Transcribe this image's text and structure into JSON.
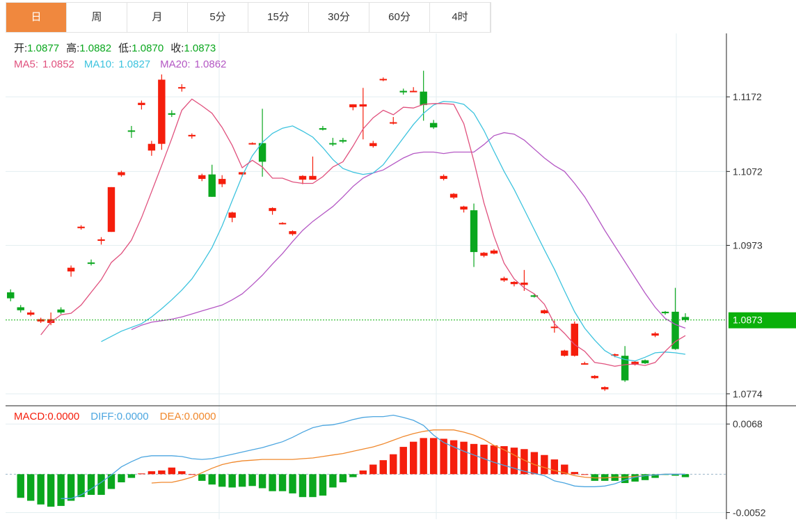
{
  "tabs": [
    {
      "label": "日",
      "active": true
    },
    {
      "label": "周",
      "active": false
    },
    {
      "label": "月",
      "active": false
    },
    {
      "label": "5分",
      "active": false
    },
    {
      "label": "15分",
      "active": false
    },
    {
      "label": "30分",
      "active": false
    },
    {
      "label": "60分",
      "active": false
    },
    {
      "label": "4时",
      "active": false
    }
  ],
  "ohlc_info": {
    "open_label": "开:",
    "open": "1.0877",
    "high_label": "高:",
    "high": "1.0882",
    "low_label": "低:",
    "low": "1.0870",
    "close_label": "收:",
    "close": "1.0873"
  },
  "ma_info": {
    "ma5_label": "MA5:",
    "ma5": "1.0852",
    "ma10_label": "MA10:",
    "ma10": "1.0827",
    "ma20_label": "MA20:",
    "ma20": "1.0862"
  },
  "macd_info": {
    "macd_label": "MACD:",
    "macd": "0.0000",
    "diff_label": "DIFF:",
    "diff": "0.0000",
    "dea_label": "DEA:",
    "dea": "0.0000"
  },
  "colors": {
    "up": "#f51e0c",
    "down": "#0aa71e",
    "ma5": "#e0507d",
    "ma10": "#3cc3de",
    "ma20": "#b457c4",
    "diff": "#4ca6e0",
    "dea": "#f0882c",
    "price_tag": "#0ab00a",
    "tab_active": "#f0883e",
    "grid": "#e3eef0"
  },
  "chart_data": {
    "type": "candlestick",
    "price_axis": {
      "ticks": [
        1.1172,
        1.1072,
        1.0973,
        1.0774
      ],
      "labels": [
        "1.1172",
        "1.1072",
        "1.0973",
        "1.0774"
      ],
      "range": [
        1.0758,
        1.1257
      ]
    },
    "current_price": {
      "value": 1.0873,
      "label": "1.0873"
    },
    "macd_axis": {
      "ticks": [
        0.0068,
        -0.0052
      ],
      "labels": [
        "0.0068",
        "-0.0052"
      ],
      "range": [
        -0.0061,
        0.0088
      ]
    },
    "candles": [
      [
        1.091,
        1.0902,
        1.0914,
        1.0898
      ],
      [
        1.089,
        1.0886,
        1.0893,
        1.0883
      ],
      [
        1.088,
        1.0883,
        1.0886,
        1.0878
      ],
      [
        1.0871,
        1.0874,
        1.0876,
        1.0869
      ],
      [
        1.0869,
        1.0874,
        1.0883,
        1.0866
      ],
      [
        1.0887,
        1.0883,
        1.089,
        1.0881
      ],
      [
        1.0938,
        1.0943,
        1.0946,
        1.0931
      ],
      [
        1.0996,
        1.0998,
        1.1,
        1.0994
      ],
      [
        1.095,
        1.0949,
        1.0954,
        1.0946
      ],
      [
        1.0979,
        1.0981,
        1.0984,
        1.0974
      ],
      [
        1.0991,
        1.1051,
        1.1051,
        1.0991
      ],
      [
        1.1067,
        1.1071,
        1.1073,
        1.1065
      ],
      [
        1.1127,
        1.1126,
        1.1133,
        1.1117
      ],
      [
        1.1161,
        1.1164,
        1.1167,
        1.1155
      ],
      [
        1.11,
        1.1109,
        1.1113,
        1.1093
      ],
      [
        1.1109,
        1.1195,
        1.1202,
        1.1101
      ],
      [
        1.115,
        1.1148,
        1.1154,
        1.1145
      ],
      [
        1.1184,
        1.1185,
        1.1189,
        1.1179
      ],
      [
        1.1119,
        1.1121,
        1.1123,
        1.1116
      ],
      [
        1.1062,
        1.1067,
        1.1069,
        1.1059
      ],
      [
        1.1068,
        1.1038,
        1.1081,
        1.1038
      ],
      [
        1.1055,
        1.1062,
        1.1067,
        1.1051
      ],
      [
        1.101,
        1.1017,
        1.1018,
        1.1004
      ],
      [
        1.1068,
        1.1071,
        1.1071,
        1.1065
      ],
      [
        1.111,
        1.111,
        1.1111,
        1.1108
      ],
      [
        1.111,
        1.1085,
        1.1156,
        1.1065
      ],
      [
        1.1019,
        1.1023,
        1.1024,
        1.1014
      ],
      [
        1.1003,
        1.1003,
        1.1004,
        1.1001
      ],
      [
        1.0988,
        1.0992,
        1.0993,
        1.0986
      ],
      [
        1.1061,
        1.1066,
        1.1067,
        1.1055
      ],
      [
        1.1061,
        1.1066,
        1.1092,
        1.1061
      ],
      [
        1.113,
        1.1128,
        1.1133,
        1.1127
      ],
      [
        1.111,
        1.1109,
        1.1117,
        1.1106
      ],
      [
        1.1114,
        1.1112,
        1.1117,
        1.111
      ],
      [
        1.1158,
        1.1162,
        1.1162,
        1.1154
      ],
      [
        1.1159,
        1.1162,
        1.1184,
        1.1115
      ],
      [
        1.1106,
        1.111,
        1.1113,
        1.1104
      ],
      [
        1.1195,
        1.1196,
        1.1198,
        1.1193
      ],
      [
        1.1137,
        1.1138,
        1.1145,
        1.1135
      ],
      [
        1.118,
        1.1178,
        1.1183,
        1.1175
      ],
      [
        1.118,
        1.118,
        1.1185,
        1.1179
      ],
      [
        1.1179,
        1.1161,
        1.1207,
        1.114
      ],
      [
        1.1137,
        1.1131,
        1.1141,
        1.1129
      ],
      [
        1.1062,
        1.1066,
        1.1068,
        1.106
      ],
      [
        1.1037,
        1.1042,
        1.1043,
        1.1035
      ],
      [
        1.1021,
        1.1025,
        1.1026,
        1.1017
      ],
      [
        1.102,
        1.0964,
        1.1029,
        1.0944
      ],
      [
        1.0959,
        1.0963,
        1.0964,
        1.0957
      ],
      [
        1.0962,
        1.0966,
        1.0968,
        1.0961
      ],
      [
        1.0926,
        1.0929,
        1.0931,
        1.0924
      ],
      [
        1.0921,
        1.0924,
        1.0925,
        1.0918
      ],
      [
        1.092,
        1.0923,
        1.094,
        1.0912
      ],
      [
        1.0906,
        1.0904,
        1.0908,
        1.0903
      ],
      [
        1.0882,
        1.0886,
        1.0887,
        1.0881
      ],
      [
        1.0863,
        1.0864,
        1.0872,
        1.0856
      ],
      [
        1.0825,
        1.0832,
        1.0833,
        1.0824
      ],
      [
        1.0825,
        1.0868,
        1.0871,
        1.0824
      ],
      [
        1.0814,
        1.0815,
        1.0817,
        1.0813
      ],
      [
        1.0795,
        1.0798,
        1.0799,
        1.0794
      ],
      [
        1.078,
        1.0783,
        1.0784,
        1.0778
      ],
      [
        1.0825,
        1.0827,
        1.0828,
        1.0823
      ],
      [
        1.0825,
        1.0792,
        1.0838,
        1.079
      ],
      [
        1.0813,
        1.0817,
        1.0818,
        1.0812
      ],
      [
        1.0819,
        1.0815,
        1.082,
        1.0814
      ],
      [
        1.0852,
        1.0855,
        1.0857,
        1.085
      ],
      [
        1.0884,
        1.0882,
        1.0885,
        1.088
      ],
      [
        1.0884,
        1.0834,
        1.0916,
        1.0833
      ],
      [
        1.0877,
        1.0873,
        1.0882,
        1.087
      ]
    ],
    "ma5": [
      1.0853,
      1.087,
      1.088,
      1.0882,
      1.0893,
      1.091,
      1.0927,
      1.095,
      1.0962,
      1.098,
      1.101,
      1.1045,
      1.108,
      1.1116,
      1.1154,
      1.1169,
      1.116,
      1.115,
      1.1131,
      1.1107,
      1.1077,
      1.1087,
      1.1078,
      1.1063,
      1.1063,
      1.1058,
      1.1056,
      1.1056,
      1.1065,
      1.1078,
      1.1085,
      1.1106,
      1.1129,
      1.1144,
      1.1154,
      1.1148,
      1.1158,
      1.1157,
      1.1162,
      1.1163,
      1.1163,
      1.1162,
      1.1136,
      1.1086,
      1.103,
      1.0985,
      1.0949,
      1.0928,
      1.0916,
      1.0908,
      1.0894,
      1.0868,
      1.0855,
      1.084,
      1.0831,
      1.0816,
      1.0814,
      1.0811,
      1.0813,
      1.0814,
      1.0812,
      1.0816,
      1.0831,
      1.0844,
      1.0852
    ],
    "ma10": [
      1.0844,
      1.0851,
      1.0858,
      1.0863,
      1.0868,
      1.0877,
      1.0888,
      1.09,
      1.0913,
      1.0928,
      1.0948,
      1.097,
      1.0999,
      1.1033,
      1.1066,
      1.1093,
      1.1111,
      1.1123,
      1.113,
      1.1133,
      1.1126,
      1.1118,
      1.1104,
      1.1088,
      1.1076,
      1.1071,
      1.1068,
      1.107,
      1.1081,
      1.1099,
      1.1117,
      1.1135,
      1.115,
      1.1161,
      1.1166,
      1.1165,
      1.1162,
      1.115,
      1.1127,
      1.1099,
      1.1072,
      1.1048,
      1.1021,
      1.0994,
      1.0967,
      1.0941,
      1.0912,
      1.0884,
      1.0862,
      1.0846,
      1.0832,
      1.0824,
      1.082,
      1.0818,
      1.0823,
      1.0829,
      1.083,
      1.0829,
      1.0827
    ],
    "ma20": [
      1.086,
      1.0866,
      1.087,
      1.0872,
      1.0874,
      1.0877,
      1.0881,
      1.0885,
      1.0889,
      1.0893,
      1.09,
      1.0908,
      1.092,
      1.0933,
      1.0948,
      1.0962,
      1.0978,
      1.0993,
      1.1005,
      1.1015,
      1.1025,
      1.1038,
      1.1052,
      1.1063,
      1.107,
      1.1074,
      1.1082,
      1.109,
      1.1096,
      1.1098,
      1.1098,
      1.1096,
      1.1098,
      1.1098,
      1.1098,
      1.1108,
      1.112,
      1.1124,
      1.1122,
      1.1114,
      1.1102,
      1.109,
      1.108,
      1.1072,
      1.1056,
      1.1038,
      1.1016,
      1.0993,
      1.0972,
      1.0951,
      1.093,
      1.0909,
      1.089,
      1.0875,
      1.0867,
      1.0862
    ],
    "diff": [
      -0.0033,
      -0.0033,
      -0.0028,
      -0.002,
      -0.0011,
      -0.0001,
      0.001,
      0.0017,
      0.0023,
      0.0025,
      0.0025,
      0.0025,
      0.0024,
      0.0021,
      0.002,
      0.0021,
      0.0024,
      0.0027,
      0.003,
      0.0033,
      0.0036,
      0.004,
      0.0044,
      0.005,
      0.0057,
      0.0063,
      0.0066,
      0.0067,
      0.007,
      0.0074,
      0.0077,
      0.0078,
      0.0078,
      0.008,
      0.0077,
      0.0073,
      0.0066,
      0.0053,
      0.0043,
      0.0037,
      0.0031,
      0.0026,
      0.0021,
      0.0016,
      0.0012,
      0.0008,
      0.0004,
      0.0001,
      -0.0002,
      -0.0009,
      -0.0012,
      -0.0016,
      -0.0017,
      -0.0017,
      -0.0016,
      -0.0013,
      -0.0008,
      -0.0004,
      -0.0002,
      -0.0001,
      0.0,
      0.0,
      0.0
    ],
    "dea": [
      -0.0012,
      -0.0011,
      -0.0011,
      -0.0008,
      -0.0004,
      0.0002,
      0.0008,
      0.0013,
      0.0016,
      0.0018,
      0.0019,
      0.002,
      0.002,
      0.002,
      0.002,
      0.0021,
      0.0022,
      0.0024,
      0.0026,
      0.0028,
      0.0031,
      0.0034,
      0.0037,
      0.0041,
      0.0046,
      0.0051,
      0.0055,
      0.0058,
      0.006,
      0.006,
      0.006,
      0.0057,
      0.0053,
      0.0047,
      0.0039,
      0.0033,
      0.0026,
      0.0019,
      0.0013,
      0.0009,
      0.0005,
      0.0002,
      -0.0002,
      -0.0004,
      -0.0005,
      -0.0005,
      -0.0004,
      -0.0004,
      -0.0003,
      -0.0002,
      -0.0001,
      0.0,
      0.0,
      0.0
    ],
    "macd_hist": [
      -0.0032,
      -0.0036,
      -0.0041,
      -0.0044,
      -0.0043,
      -0.0036,
      -0.0031,
      -0.0028,
      -0.0028,
      -0.002,
      -0.0011,
      -0.0005,
      0.0001,
      0.0004,
      0.0005,
      0.0009,
      0.0004,
      0.0,
      -0.0009,
      -0.0014,
      -0.0017,
      -0.0018,
      -0.0017,
      -0.0016,
      -0.0019,
      -0.0023,
      -0.0023,
      -0.0026,
      -0.0031,
      -0.0031,
      -0.0029,
      -0.0018,
      -0.0011,
      -0.0004,
      0.0005,
      0.0013,
      0.0019,
      0.0027,
      0.0037,
      0.0044,
      0.0049,
      0.0049,
      0.0048,
      0.0046,
      0.0044,
      0.0041,
      0.004,
      0.0039,
      0.0038,
      0.0036,
      0.0034,
      0.003,
      0.0026,
      0.002,
      0.0013,
      0.0003,
      0.0,
      -0.0009,
      -0.0009,
      -0.0009,
      -0.0012,
      -0.001,
      -0.0008,
      -0.0005,
      -0.0001,
      -0.0002,
      -0.0004
    ]
  }
}
